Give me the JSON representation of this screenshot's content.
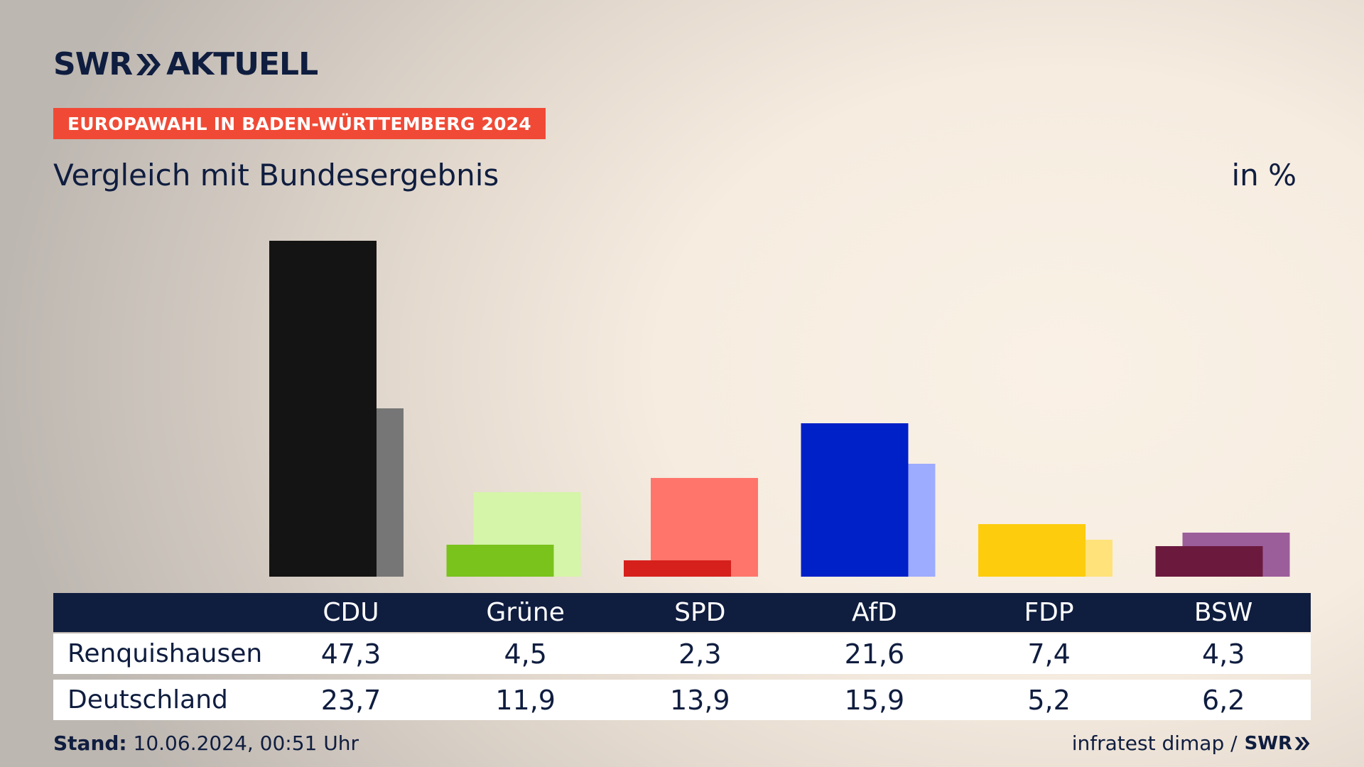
{
  "header": {
    "logo_left": "SWR",
    "logo_right": "AKTUELL",
    "badge": "EUROPAWAHL IN BADEN-WÜRTTEMBERG 2024",
    "subtitle": "Vergleich mit Bundesergebnis",
    "unit": "in %"
  },
  "chart_data": {
    "type": "bar",
    "categories": [
      "CDU",
      "Grüne",
      "SPD",
      "AfD",
      "FDP",
      "BSW"
    ],
    "series": [
      {
        "name": "Renquishausen",
        "values": [
          47.3,
          4.5,
          2.3,
          21.6,
          7.4,
          4.3
        ]
      },
      {
        "name": "Deutschland",
        "values": [
          23.7,
          11.9,
          13.9,
          15.9,
          5.2,
          6.2
        ]
      }
    ],
    "colors_local": [
      "#141414",
      "#7ac21c",
      "#d6201c",
      "#0020c8",
      "#fdcc0d",
      "#6b1a3e"
    ],
    "colors_national": [
      "#767676",
      "#d5f5a8",
      "#ff756b",
      "#9eacff",
      "#ffe27a",
      "#9c5d9b"
    ],
    "ylim": [
      0,
      50
    ],
    "grid": false,
    "legend": "table-below"
  },
  "table": {
    "rows": [
      {
        "label": "Renquishausen",
        "values": [
          "47,3",
          "4,5",
          "2,3",
          "21,6",
          "7,4",
          "4,3"
        ]
      },
      {
        "label": "Deutschland",
        "values": [
          "23,7",
          "11,9",
          "13,9",
          "15,9",
          "5,2",
          "6,2"
        ]
      }
    ]
  },
  "footer": {
    "stand_label": "Stand:",
    "stand_value": "10.06.2024, 00:51 Uhr",
    "source": "infratest dimap /",
    "source_logo": "SWR"
  }
}
